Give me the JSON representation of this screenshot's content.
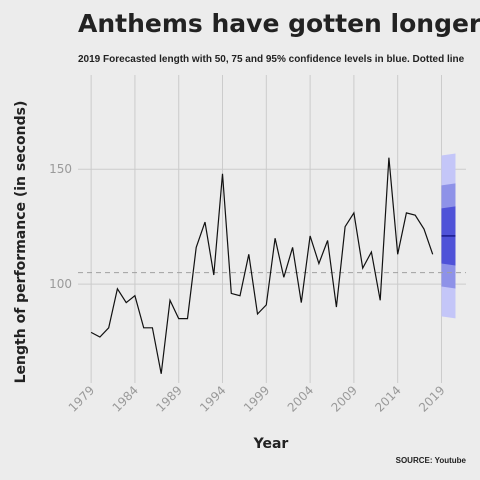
{
  "chart_data": {
    "type": "line",
    "title": "Anthems have gotten longer",
    "subtitle": "2019 Forecasted length with 50, 75 and 95% confidence levels in blue. Dotted line",
    "xlabel": "Year",
    "ylabel": "Length of performance (in seconds)",
    "source": "SOURCE: Youtube",
    "xlim": [
      1977.5,
      2021.8
    ],
    "ylim": [
      57,
      191
    ],
    "x_ticks": [
      1979,
      1984,
      1989,
      1994,
      1999,
      2004,
      2009,
      2014,
      2019
    ],
    "x_tick_labels": [
      "1979",
      "1984",
      "1989",
      "1994",
      "1999",
      "2004",
      "2009",
      "2014",
      "2019"
    ],
    "y_ticks": [
      100,
      150
    ],
    "y_tick_labels": [
      "100",
      "150"
    ],
    "grid": true,
    "reference_line": 105,
    "x": [
      1979,
      1980,
      1981,
      1982,
      1983,
      1984,
      1985,
      1986,
      1987,
      1988,
      1989,
      1990,
      1991,
      1992,
      1993,
      1994,
      1995,
      1996,
      1997,
      1998,
      1999,
      2000,
      2001,
      2002,
      2003,
      2004,
      2005,
      2006,
      2007,
      2008,
      2009,
      2010,
      2011,
      2012,
      2013,
      2014,
      2015,
      2016,
      2017,
      2018
    ],
    "values": [
      79,
      77,
      81,
      98,
      92,
      95,
      81,
      81,
      61,
      93,
      85,
      85,
      116,
      127,
      104,
      148,
      96,
      95,
      113,
      87,
      91,
      120,
      103,
      116,
      92,
      121,
      109,
      119,
      90,
      125,
      131,
      107,
      114,
      93,
      155,
      113,
      131,
      130,
      124,
      113
    ],
    "forecast": {
      "x_start": 2019,
      "x_end": 2020.6,
      "point": 121,
      "band_95": [
        86,
        156
      ],
      "band_75": [
        99,
        143
      ],
      "band_50": [
        109,
        133
      ],
      "colors": [
        "#c4c6f8",
        "#8e92e8",
        "#4f52d8"
      ]
    },
    "line_color": "#111111"
  }
}
